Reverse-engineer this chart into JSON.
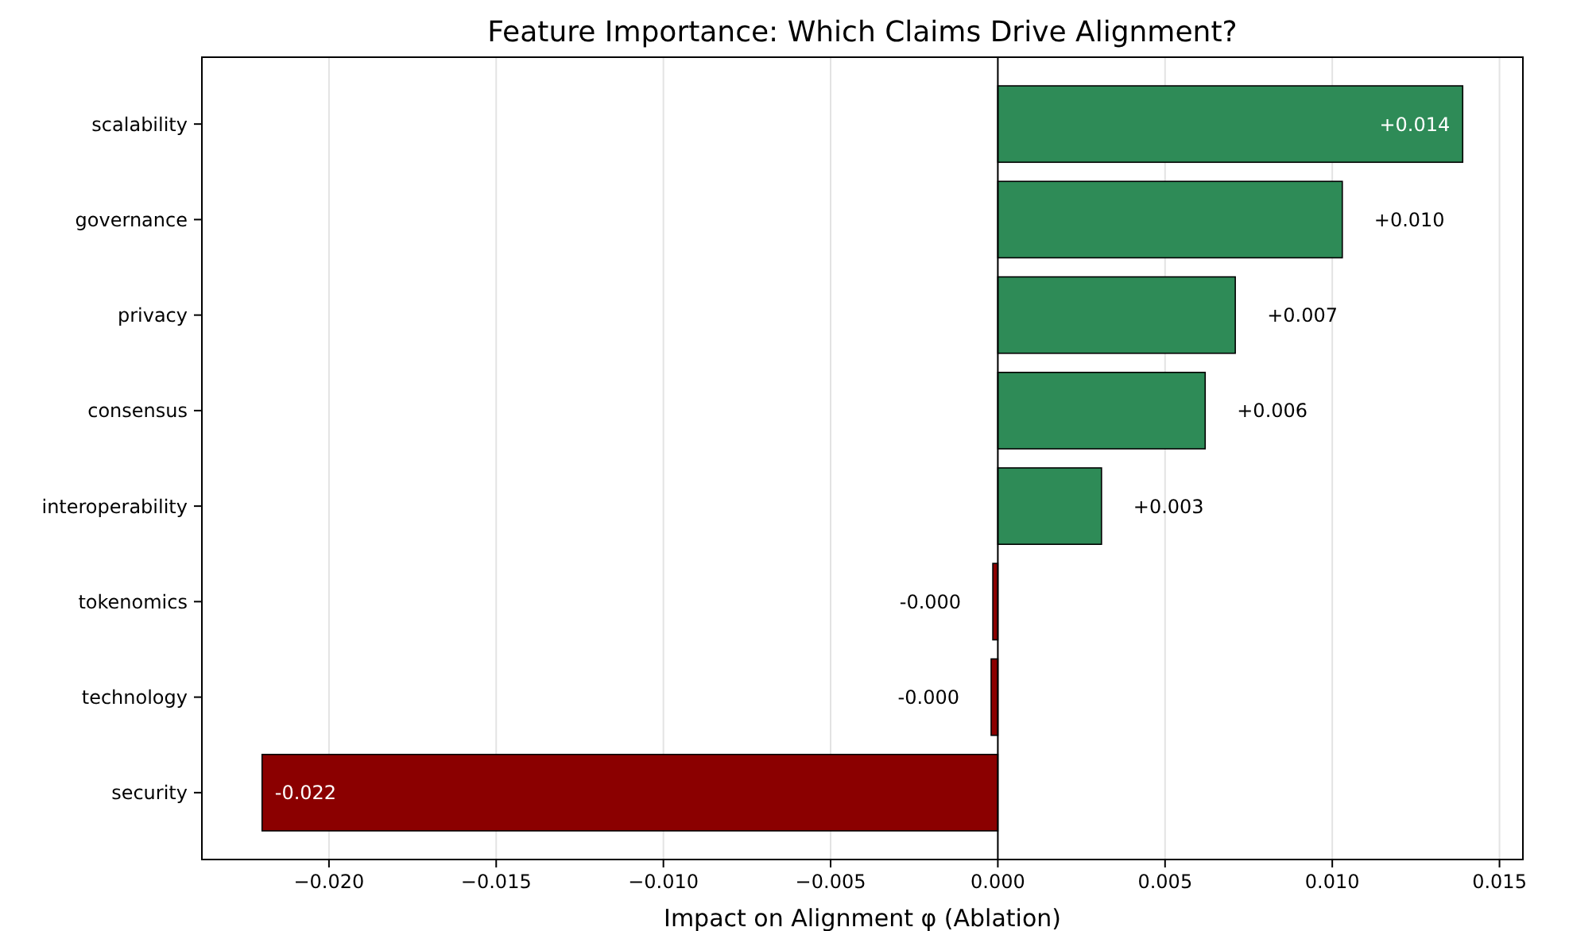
{
  "chart_data": {
    "type": "bar",
    "orientation": "horizontal",
    "title": "Feature Importance: Which Claims Drive Alignment?",
    "xlabel": "Impact on Alignment φ (Ablation)",
    "categories": [
      "scalability",
      "governance",
      "privacy",
      "consensus",
      "interoperability",
      "tokenomics",
      "technology",
      "security"
    ],
    "values": [
      0.0139,
      0.0103,
      0.0071,
      0.0062,
      0.0031,
      -0.00015,
      -0.0002,
      -0.022
    ],
    "colors": [
      "#2e8b57",
      "#2e8b57",
      "#2e8b57",
      "#2e8b57",
      "#2e8b57",
      "#8b0000",
      "#8b0000",
      "#8b0000"
    ],
    "value_labels": [
      "+0.014",
      "+0.010",
      "+0.007",
      "+0.006",
      "+0.003",
      "-0.000",
      "-0.000",
      "-0.022"
    ],
    "xlim": [
      -0.0238,
      0.0157
    ],
    "xticks": [
      {
        "value": -0.02,
        "label": "−0.020"
      },
      {
        "value": -0.015,
        "label": "−0.015"
      },
      {
        "value": -0.01,
        "label": "−0.010"
      },
      {
        "value": -0.005,
        "label": "−0.005"
      },
      {
        "value": 0,
        "label": "0.000"
      },
      {
        "value": 0.005,
        "label": "0.005"
      },
      {
        "value": 0.01,
        "label": "0.010"
      },
      {
        "value": 0.015,
        "label": "0.015"
      }
    ],
    "ref_lines": [
      {
        "axis": "x",
        "value": 0,
        "color": "#000000"
      }
    ],
    "grid": "x"
  }
}
